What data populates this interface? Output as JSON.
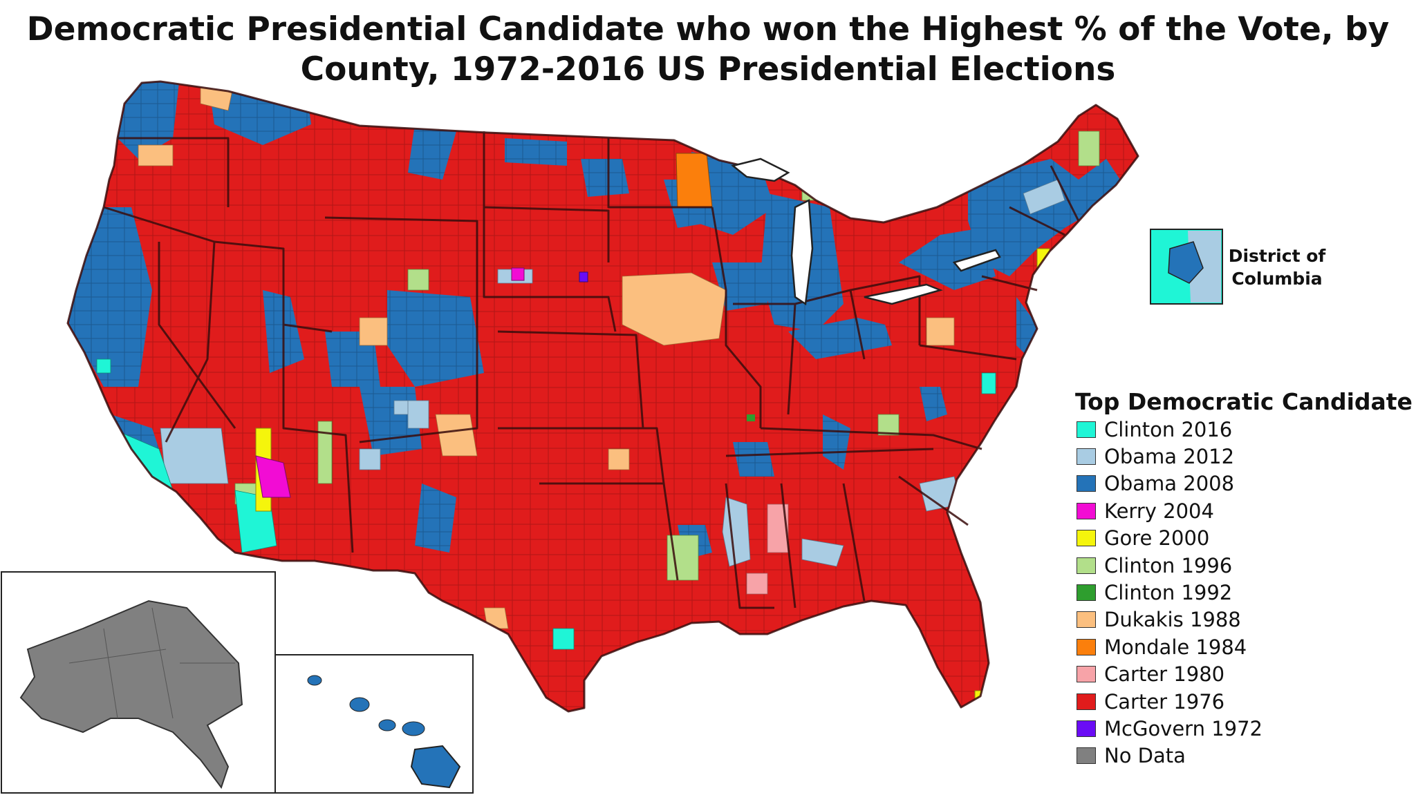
{
  "title": {
    "line1": "Democratic Presidential Candidate who won the Highest % of the Vote, by",
    "line2": "County, 1972-2016 US Presidential Elections"
  },
  "inset": {
    "dc_label_line1": "District of",
    "dc_label_line2": "Columbia"
  },
  "legend": {
    "title": "Top Democratic Candidate",
    "items": [
      {
        "label": "Clinton 2016",
        "color": "#1ff5d6"
      },
      {
        "label": "Obama 2012",
        "color": "#a9cce3"
      },
      {
        "label": "Obama 2008",
        "color": "#2473b8"
      },
      {
        "label": "Kerry 2004",
        "color": "#f20cd4"
      },
      {
        "label": "Gore 2000",
        "color": "#f5f50c"
      },
      {
        "label": "Clinton 1996",
        "color": "#b2df8a"
      },
      {
        "label": "Clinton 1992",
        "color": "#2e9e2e"
      },
      {
        "label": "Dukakis 1988",
        "color": "#fbbf7f"
      },
      {
        "label": "Mondale 1984",
        "color": "#fb7f0c"
      },
      {
        "label": "Carter 1980",
        "color": "#f7a3a8"
      },
      {
        "label": "Carter 1976",
        "color": "#e01c1c"
      },
      {
        "label": "McGovern 1972",
        "color": "#6a0cf5"
      },
      {
        "label": "No Data",
        "color": "#808080"
      }
    ]
  }
}
